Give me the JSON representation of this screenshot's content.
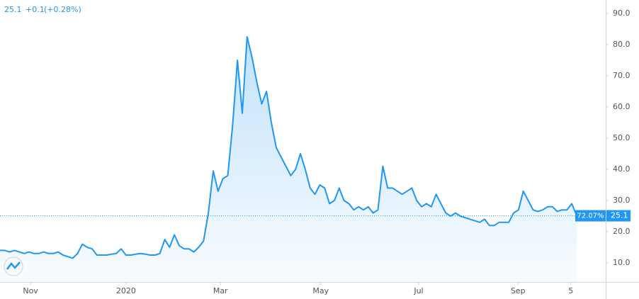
{
  "chart_data": {
    "type": "area",
    "change": "+0.1",
    "change_percent": "(+0.28%)",
    "percent_label": "72.07%",
    "xlim": [
      0,
      125
    ],
    "xticks": [
      {
        "value": 6.3,
        "label": "Nov"
      },
      {
        "value": 26,
        "label": "2020"
      },
      {
        "value": 45.5,
        "label": "Mar"
      },
      {
        "value": 66.2,
        "label": "May"
      },
      {
        "value": 86.4,
        "label": "Jul"
      },
      {
        "value": 106.9,
        "label": "Sep"
      },
      {
        "value": 117.8,
        "label": "5"
      }
    ],
    "ylim": [
      3.86,
      94.32
    ],
    "yticks": [
      {
        "value": 10,
        "label": "10.0"
      },
      {
        "value": 20,
        "label": "20.0"
      },
      {
        "value": 30,
        "label": "30.0"
      },
      {
        "value": 40,
        "label": "40.0"
      },
      {
        "value": 50,
        "label": "50.0"
      },
      {
        "value": 60,
        "label": "60.0"
      },
      {
        "value": 70,
        "label": "70.0"
      },
      {
        "value": 80,
        "label": "80.0"
      },
      {
        "value": 90,
        "label": "90.0"
      }
    ],
    "series": [
      {
        "color": "#2196f3",
        "values": [
          14,
          14,
          13.5,
          14,
          13.5,
          13,
          13.5,
          13,
          13,
          13.5,
          13,
          13,
          13.5,
          12.5,
          12,
          11.5,
          13,
          16,
          15,
          14.5,
          12.5,
          12.5,
          12.5,
          12.8,
          13,
          14.5,
          12.5,
          12.5,
          12.8,
          13,
          12.8,
          12.5,
          12.5,
          13,
          17.5,
          15,
          19,
          15.5,
          14.5,
          14.5,
          13.5,
          15,
          17,
          26,
          39.5,
          33,
          37,
          38,
          54,
          75,
          58,
          82.5,
          76,
          68,
          61,
          65,
          55,
          47,
          44,
          41,
          38,
          40,
          45,
          40,
          34,
          32,
          35,
          34,
          29,
          30,
          34,
          30,
          29,
          27,
          28,
          27,
          28,
          26,
          27,
          41,
          34,
          34,
          33,
          32,
          33,
          34,
          30,
          28,
          29,
          28,
          32,
          29,
          26,
          25,
          26,
          25,
          24.5,
          24,
          23.5,
          23,
          24,
          22,
          22,
          23,
          23,
          23,
          26,
          27,
          33,
          30,
          27,
          26.5,
          27,
          28,
          28,
          26.5,
          27,
          27,
          29,
          25.1
        ]
      }
    ]
  }
}
